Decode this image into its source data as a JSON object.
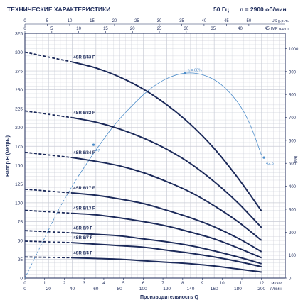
{
  "header": {
    "title": "ТЕХНИЧЕСКИЕ ХАРАКТЕРИСТИКИ",
    "frequency": "50 Гц",
    "speed": "n = 2900 об/мин"
  },
  "chart_data": {
    "type": "line",
    "xlabel": "Производительность Q",
    "ylabel": "Напор H (метры)",
    "x_unit": "л/мин",
    "x_unit_m3h": "м³/час",
    "top_axis_unit_us": "US g.p.m.",
    "top_axis_unit_imp": "IMP g.p.m.",
    "right_axis_unit": "feet",
    "xlim": [
      0,
      200
    ],
    "ylim": [
      0,
      325
    ],
    "x_ticks": [
      0,
      20,
      40,
      60,
      80,
      100,
      120,
      140,
      160,
      180,
      200
    ],
    "y_ticks": [
      0,
      25,
      50,
      75,
      100,
      125,
      150,
      175,
      200,
      225,
      250,
      275,
      300,
      325
    ],
    "m3h_ticks": [
      0,
      1,
      2,
      3,
      4,
      5,
      6,
      7,
      8,
      9,
      10,
      11,
      12
    ],
    "us_gpm_ticks": [
      0,
      5,
      10,
      15,
      20,
      25,
      30,
      35,
      40,
      45,
      50
    ],
    "imp_gpm_ticks": [
      0,
      5,
      10,
      15,
      20,
      25,
      30,
      35,
      40,
      45
    ],
    "feet_ticks": [
      0,
      100,
      200,
      300,
      400,
      500,
      600,
      700,
      800,
      900,
      1000
    ],
    "series": [
      {
        "name": "4SR 8/43 F",
        "x": [
          0,
          40,
          60,
          80,
          100,
          120,
          140,
          160,
          180,
          200
        ],
        "y": [
          300,
          287,
          279,
          267,
          251,
          230,
          204,
          172,
          133,
          89
        ]
      },
      {
        "name": "4SR 8/32 F",
        "x": [
          0,
          40,
          60,
          80,
          100,
          120,
          140,
          160,
          180,
          200
        ],
        "y": [
          222,
          213,
          207,
          198,
          186,
          171,
          152,
          128,
          100,
          67
        ]
      },
      {
        "name": "4SR 8/24 F",
        "x": [
          0,
          40,
          60,
          80,
          100,
          120,
          140,
          160,
          180,
          200
        ],
        "y": [
          167,
          160,
          155,
          149,
          140,
          128,
          114,
          96,
          75,
          50
        ]
      },
      {
        "name": "4SR 8/17 F",
        "x": [
          0,
          40,
          60,
          80,
          100,
          120,
          140,
          160,
          180,
          200
        ],
        "y": [
          118,
          113,
          110,
          105,
          99,
          90,
          80,
          68,
          53,
          35
        ]
      },
      {
        "name": "4SR 8/13 F",
        "x": [
          0,
          40,
          60,
          80,
          100,
          120,
          140,
          160,
          180,
          200
        ],
        "y": [
          90,
          86,
          84,
          80,
          75,
          69,
          61,
          52,
          40,
          27
        ]
      },
      {
        "name": "4SR 8/9 F",
        "x": [
          0,
          40,
          60,
          80,
          100,
          120,
          140,
          160,
          180,
          200
        ],
        "y": [
          63,
          60,
          58,
          56,
          52,
          48,
          43,
          36,
          28,
          19
        ]
      },
      {
        "name": "4SR 8/7 F",
        "x": [
          0,
          40,
          60,
          80,
          100,
          120,
          140,
          160,
          180,
          200
        ],
        "y": [
          49,
          47,
          45,
          43,
          41,
          37,
          33,
          28,
          22,
          15
        ]
      },
      {
        "name": "4SR 8/4 F",
        "x": [
          0,
          40,
          60,
          80,
          100,
          120,
          140,
          160,
          180,
          200
        ],
        "y": [
          28,
          27,
          26,
          25,
          23,
          21,
          19,
          16,
          12,
          8
        ]
      }
    ],
    "efficiency_curve": {
      "label": "η = 68%",
      "x": [
        0,
        15,
        30,
        45,
        60,
        75,
        90,
        105,
        120,
        135,
        150,
        165,
        180,
        190,
        200
      ],
      "y": [
        0,
        48,
        95,
        135,
        170,
        202,
        228,
        250,
        265,
        272,
        270,
        258,
        233,
        205,
        163
      ]
    },
    "annotations": [
      {
        "text": "47",
        "x": 58,
        "y": 177
      },
      {
        "text": "42,5",
        "x": 202,
        "y": 160
      }
    ],
    "grid": true
  }
}
